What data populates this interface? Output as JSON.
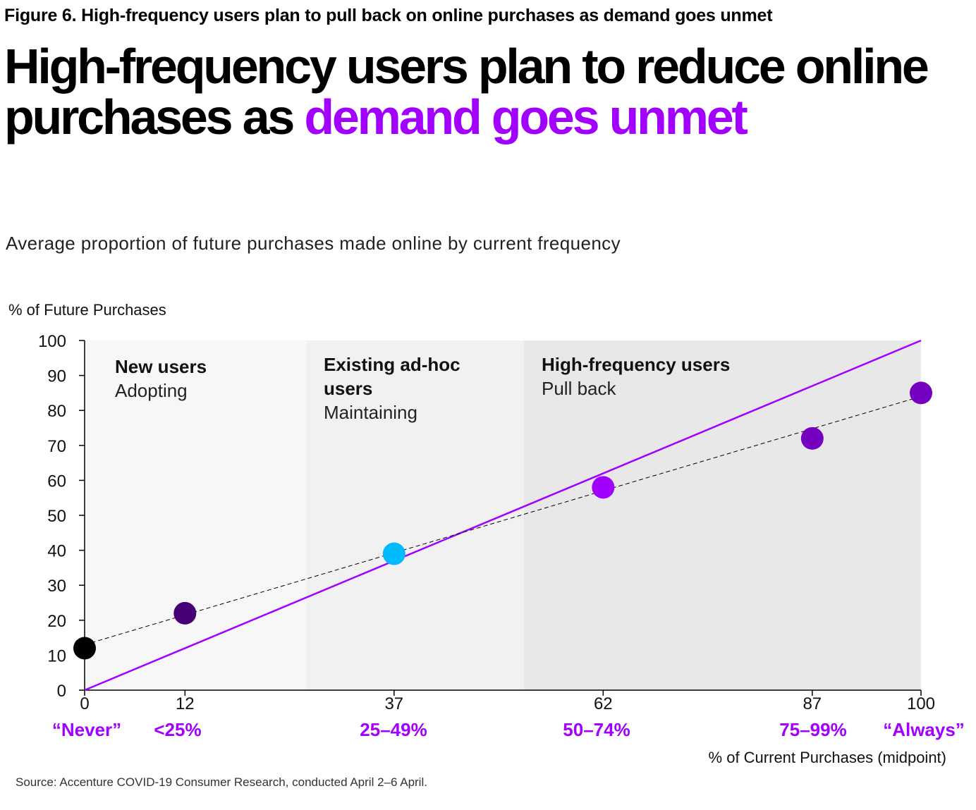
{
  "figure_label": "Figure 6. High-frequency users plan to pull back on online purchases as demand goes unmet",
  "headline": {
    "plain": "High-frequency users plan to reduce online purchases as ",
    "accent": "demand goes unmet"
  },
  "subtitle": "Average proportion of future purchases made online by current frequency",
  "source": "Source: Accenture COVID-19 Consumer Research, conducted April 2–6 April.",
  "colors": {
    "purple": "#a100ff",
    "dark_purple": "#460073",
    "mid_purple": "#7500c0",
    "cyan": "#00baff",
    "black": "#000000",
    "band_1": "#f7f7f7",
    "band_2": "#f1f1f1",
    "band_3": "#e8e8e8"
  },
  "chart_data": {
    "type": "scatter",
    "ylabel": "% of Future Purchases",
    "xlabel": "% of Current Purchases (midpoint)",
    "xlim": [
      0,
      100
    ],
    "ylim": [
      0,
      100
    ],
    "y_ticks": [
      0,
      10,
      20,
      30,
      40,
      50,
      60,
      70,
      80,
      90,
      100
    ],
    "x_ticks": [
      {
        "value": 0,
        "label": "0",
        "category": "“Never”"
      },
      {
        "value": 12,
        "label": "12",
        "category": "<25%"
      },
      {
        "value": 37,
        "label": "37",
        "category": "25–49%"
      },
      {
        "value": 62,
        "label": "62",
        "category": "50–74%"
      },
      {
        "value": 87,
        "label": "87",
        "category": "75–99%"
      },
      {
        "value": 100,
        "label": "100",
        "category": "“Always”"
      }
    ],
    "points": [
      {
        "x": 0,
        "y": 12,
        "color": "#000000"
      },
      {
        "x": 12,
        "y": 22,
        "color": "#460073"
      },
      {
        "x": 37,
        "y": 39,
        "color": "#00baff"
      },
      {
        "x": 62,
        "y": 58,
        "color": "#a100ff"
      },
      {
        "x": 87,
        "y": 72,
        "color": "#7500c0"
      },
      {
        "x": 100,
        "y": 85,
        "color": "#7500c0"
      }
    ],
    "reference_line": {
      "x": [
        0,
        100
      ],
      "y": [
        0,
        100
      ],
      "color": "#a100ff"
    },
    "trend_line": {
      "x": [
        0,
        100
      ],
      "y": [
        13,
        84
      ],
      "style": "dashed",
      "color": "#000000"
    },
    "segments": [
      {
        "x_range": [
          0,
          26.5
        ],
        "title": "New users",
        "subtitle": "Adopting",
        "fill": "#f7f7f7"
      },
      {
        "x_range": [
          26.5,
          52.5
        ],
        "title": "Existing ad-hoc users",
        "subtitle": "Maintaining",
        "fill": "#f1f1f1"
      },
      {
        "x_range": [
          52.5,
          100
        ],
        "title": "High-frequency users",
        "subtitle": "Pull back",
        "fill": "#e8e8e8"
      }
    ]
  }
}
